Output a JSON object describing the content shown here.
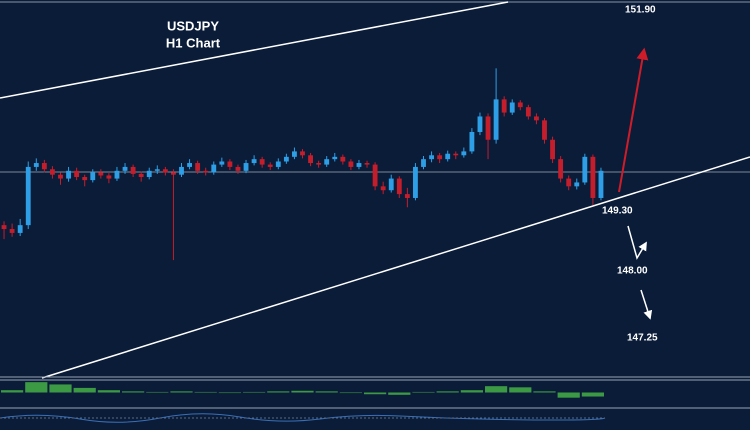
{
  "chart_data": {
    "type": "candlestick",
    "title": "USDJPY",
    "subtitle": "H1 Chart",
    "annotations": [
      "151.90",
      "149.30",
      "148.00",
      "147.25"
    ],
    "up_color": "#2e9fe6",
    "down_color": "#c41e2c",
    "ylim": [
      147.17,
      152.0
    ],
    "candles": [
      [
        149.1,
        149.15,
        148.92,
        149.05
      ],
      [
        149.05,
        149.12,
        148.95,
        149.0
      ],
      [
        149.0,
        149.18,
        148.96,
        149.1
      ],
      [
        149.1,
        149.92,
        149.05,
        149.85
      ],
      [
        149.85,
        149.96,
        149.8,
        149.9
      ],
      [
        149.9,
        149.94,
        149.78,
        149.82
      ],
      [
        149.82,
        149.86,
        149.7,
        149.75
      ],
      [
        149.75,
        149.78,
        149.62,
        149.7
      ],
      [
        149.7,
        149.85,
        149.66,
        149.8
      ],
      [
        149.8,
        149.84,
        149.68,
        149.72
      ],
      [
        149.72,
        149.75,
        149.6,
        149.68
      ],
      [
        149.68,
        149.82,
        149.65,
        149.78
      ],
      [
        149.78,
        149.82,
        149.7,
        149.74
      ],
      [
        149.74,
        149.77,
        149.64,
        149.7
      ],
      [
        149.7,
        149.85,
        149.67,
        149.8
      ],
      [
        149.8,
        149.9,
        149.76,
        149.85
      ],
      [
        149.85,
        149.88,
        149.72,
        149.76
      ],
      [
        149.76,
        149.79,
        149.66,
        149.72
      ],
      [
        149.72,
        149.84,
        149.69,
        149.8
      ],
      [
        149.8,
        149.87,
        149.76,
        149.82
      ],
      [
        149.82,
        149.85,
        149.74,
        149.78
      ],
      [
        149.78,
        149.82,
        148.65,
        149.75
      ],
      [
        149.75,
        149.9,
        149.72,
        149.85
      ],
      [
        149.85,
        149.95,
        149.82,
        149.9
      ],
      [
        149.9,
        149.93,
        149.76,
        149.8
      ],
      [
        149.8,
        149.84,
        149.74,
        149.78
      ],
      [
        149.78,
        149.92,
        149.75,
        149.88
      ],
      [
        149.88,
        149.97,
        149.85,
        149.92
      ],
      [
        149.92,
        149.95,
        149.81,
        149.85
      ],
      [
        149.85,
        149.88,
        149.76,
        149.8
      ],
      [
        149.8,
        149.94,
        149.77,
        149.9
      ],
      [
        149.9,
        150.0,
        149.87,
        149.95
      ],
      [
        149.95,
        149.98,
        149.84,
        149.88
      ],
      [
        149.88,
        149.91,
        149.81,
        149.85
      ],
      [
        149.85,
        149.96,
        149.82,
        149.92
      ],
      [
        149.92,
        150.02,
        149.89,
        149.98
      ],
      [
        149.98,
        150.1,
        149.95,
        150.05
      ],
      [
        150.05,
        150.08,
        149.96,
        150.0
      ],
      [
        150.0,
        150.03,
        149.86,
        149.9
      ],
      [
        149.9,
        149.93,
        149.84,
        149.88
      ],
      [
        149.88,
        149.99,
        149.85,
        149.95
      ],
      [
        149.95,
        150.03,
        149.92,
        149.98
      ],
      [
        149.98,
        150.01,
        149.88,
        149.92
      ],
      [
        149.92,
        149.95,
        149.81,
        149.85
      ],
      [
        149.85,
        149.94,
        149.82,
        149.9
      ],
      [
        149.9,
        149.93,
        149.84,
        149.88
      ],
      [
        149.88,
        149.91,
        149.55,
        149.6
      ],
      [
        149.6,
        149.66,
        149.5,
        149.55
      ],
      [
        149.55,
        149.75,
        149.52,
        149.7
      ],
      [
        149.7,
        149.73,
        149.45,
        149.5
      ],
      [
        149.5,
        149.58,
        149.33,
        149.45
      ],
      [
        149.45,
        149.9,
        149.42,
        149.85
      ],
      [
        149.85,
        149.99,
        149.82,
        149.95
      ],
      [
        149.95,
        150.05,
        149.91,
        150.0
      ],
      [
        150.0,
        150.03,
        149.9,
        149.95
      ],
      [
        149.95,
        150.06,
        149.92,
        150.02
      ],
      [
        150.02,
        150.05,
        149.95,
        150.0
      ],
      [
        150.0,
        150.1,
        149.97,
        150.05
      ],
      [
        150.05,
        150.35,
        150.02,
        150.3
      ],
      [
        150.3,
        150.55,
        150.26,
        150.5
      ],
      [
        150.5,
        150.54,
        149.95,
        150.2
      ],
      [
        150.2,
        151.12,
        150.15,
        150.72
      ],
      [
        150.72,
        150.76,
        150.5,
        150.55
      ],
      [
        150.55,
        150.72,
        150.52,
        150.68
      ],
      [
        150.68,
        150.71,
        150.58,
        150.62
      ],
      [
        150.62,
        150.65,
        150.46,
        150.5
      ],
      [
        150.5,
        150.54,
        150.4,
        150.45
      ],
      [
        150.45,
        150.48,
        150.15,
        150.2
      ],
      [
        150.2,
        150.24,
        149.9,
        149.95
      ],
      [
        149.95,
        149.99,
        149.65,
        149.7
      ],
      [
        149.7,
        149.74,
        149.55,
        149.6
      ],
      [
        149.6,
        149.7,
        149.56,
        149.65
      ],
      [
        149.65,
        150.02,
        149.62,
        149.98
      ],
      [
        149.98,
        150.01,
        149.36,
        149.45
      ],
      [
        149.45,
        149.84,
        149.42,
        149.8
      ]
    ],
    "indicator": {
      "color": "#3c9a45",
      "ylim": [
        -1,
        1
      ],
      "values": [
        0.2,
        0.9,
        0.7,
        0.4,
        0.2,
        0.1,
        0.05,
        0.1,
        0.05,
        -0.05,
        0.05,
        0.1,
        0.15,
        0.1,
        -0.05,
        -0.15,
        -0.2,
        0.05,
        0.1,
        0.2,
        0.55,
        0.45,
        0.1,
        -0.45,
        -0.35
      ]
    }
  }
}
